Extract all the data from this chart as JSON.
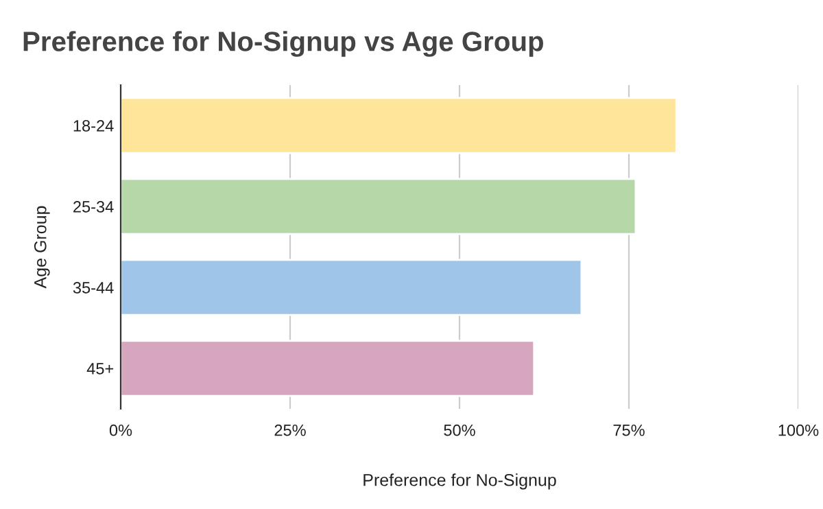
{
  "chart_data": {
    "type": "bar",
    "orientation": "horizontal",
    "title": "Preference for No-Signup vs Age Group",
    "xlabel": "Preference for No-Signup",
    "ylabel": "Age Group",
    "categories": [
      "18-24",
      "25-34",
      "35-44",
      "45+"
    ],
    "values": [
      82,
      76,
      68,
      61
    ],
    "colors": [
      "#ffe599",
      "#b6d7a8",
      "#9fc5e8",
      "#d5a6bd"
    ],
    "xlim": [
      0,
      100
    ],
    "xticks": [
      {
        "value": 0,
        "label": "0%"
      },
      {
        "value": 25,
        "label": "25%"
      },
      {
        "value": 50,
        "label": "50%"
      },
      {
        "value": 75,
        "label": "75%"
      },
      {
        "value": 100,
        "label": "100%"
      }
    ],
    "grid": "x",
    "legend": false
  }
}
